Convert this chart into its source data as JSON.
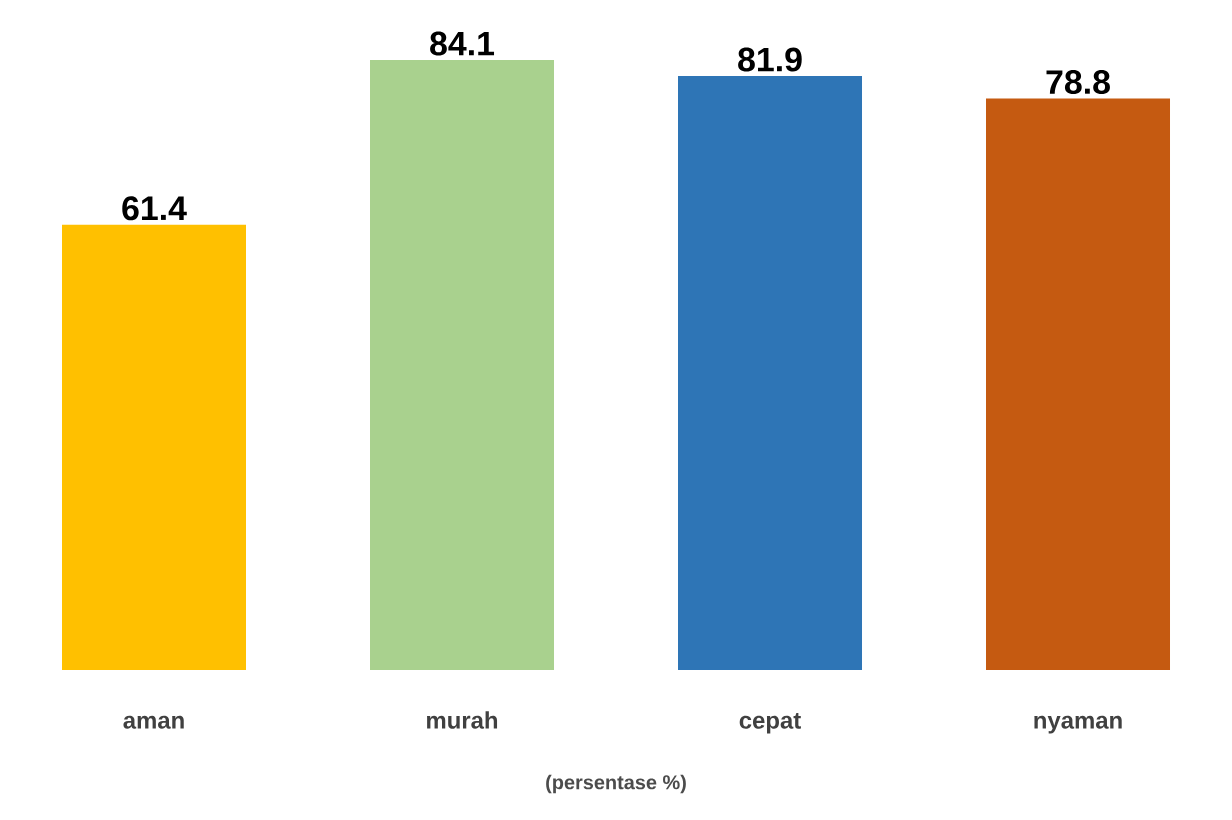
{
  "chart_data": {
    "type": "bar",
    "xlabel": "(persentase %)",
    "categories": [
      "aman",
      "murah",
      "cepat",
      "nyaman"
    ],
    "values": [
      61.4,
      84.1,
      81.9,
      78.8
    ],
    "colors": [
      "#ffc000",
      "#a9d18e",
      "#2e75b6",
      "#c55a11"
    ],
    "data_labels": true
  }
}
